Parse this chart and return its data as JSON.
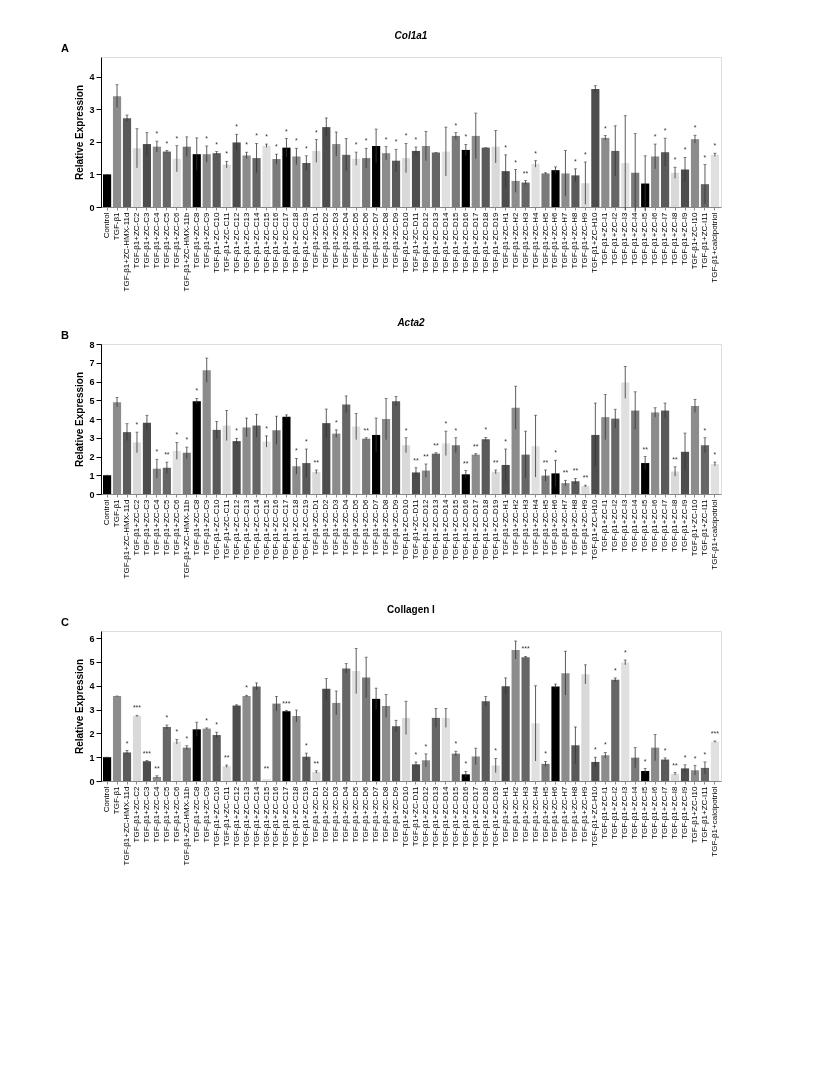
{
  "chart_data": [
    {
      "type": "bar",
      "title": "Col1a1",
      "ylabel": "Relative Expression",
      "ylim": [
        0,
        4.6
      ],
      "yticks": [
        0,
        1,
        2,
        3,
        4
      ],
      "grid": false,
      "categories": [
        "Control",
        "TGF-β1",
        "TGF-β1+ZC-HMX-11d",
        "TGF-β1+ZC-C2",
        "TGF-β1+ZC-C3",
        "TGF-β1+ZC-C4",
        "TGF-β1+ZC-C5",
        "TGF-β1+ZC-C6",
        "TGF-β1+ZC-HMX-11b",
        "TGF-β1+ZC-C8",
        "TGF-β1+ZC-C9",
        "TGF-β1+ZC-C10",
        "TGF-β1+ZC-C11",
        "TGF-β1+ZC-C12",
        "TGF-β1+ZC-C13",
        "TGF-β1+ZC-C14",
        "TGF-β1+ZC-C15",
        "TGF-β1+ZC-C16",
        "TGF-β1+ZC-C17",
        "TGF-β1+ZC-C18",
        "TGF-β1+ZC-C19",
        "TGF-β1+ZC-D1",
        "TGF-β1+ZC-D2",
        "TGF-β1+ZC-D3",
        "TGF-β1+ZC-D4",
        "TGF-β1+ZC-D5",
        "TGF-β1+ZC-D6",
        "TGF-β1+ZC-D7",
        "TGF-β1+ZC-D8",
        "TGF-β1+ZC-D9",
        "TGF-β1+ZC-D10",
        "TGF-β1+ZC-D11",
        "TGF-β1+ZC-D12",
        "TGF-β1+ZC-D13",
        "TGF-β1+ZC-D14",
        "TGF-β1+ZC-D15",
        "TGF-β1+ZC-D16",
        "TGF-β1+ZC-D17",
        "TGF-β1+ZC-D18",
        "TGF-β1+ZC-D19",
        "TGF-β1+ZC-H1",
        "TGF-β1+ZC-H2",
        "TGF-β1+ZC-H3",
        "TGF-β1+ZC-H4",
        "TGF-β1+ZC-H5",
        "TGF-β1+ZC-H6",
        "TGF-β1+ZC-H7",
        "TGF-β1+ZC-H8",
        "TGF-β1+ZC-H9",
        "TGF-β1+ZC-H10",
        "TGF-β1+ZC-I1",
        "TGF-β1+ZC-I2",
        "TGF-β1+ZC-I3",
        "TGF-β1+ZC-I4",
        "TGF-β1+ZC-I5",
        "TGF-β1+ZC-I6",
        "TGF-β1+ZC-I7",
        "TGF-β1+ZC-I8",
        "TGF-β1+ZC-I9",
        "TGF-β1+ZC-I10",
        "TGF-β1+ZC-I11",
        "TGF-β1+calcipotriol"
      ],
      "values": [
        1.0,
        3.4,
        2.72,
        1.8,
        1.93,
        1.85,
        1.7,
        1.48,
        1.85,
        1.62,
        1.62,
        1.65,
        1.3,
        1.98,
        1.58,
        1.5,
        1.88,
        1.47,
        1.82,
        1.55,
        1.35,
        1.72,
        2.45,
        1.93,
        1.6,
        1.48,
        1.5,
        1.87,
        1.65,
        1.42,
        1.5,
        1.72,
        1.87,
        1.67,
        1.7,
        2.18,
        1.75,
        2.18,
        1.82,
        1.85,
        1.1,
        0.8,
        0.75,
        1.32,
        1.03,
        1.13,
        1.03,
        0.97,
        0.73,
        3.62,
        2.12,
        1.72,
        1.35,
        1.05,
        0.72,
        1.55,
        1.68,
        1.05,
        1.15,
        2.08,
        0.7,
        1.6
      ],
      "errors": [
        0,
        0.35,
        0.1,
        0.6,
        0.35,
        0.17,
        0.03,
        0.4,
        0.3,
        0.5,
        0.25,
        0.05,
        0.1,
        0.25,
        0.1,
        0.45,
        0.05,
        0.15,
        0.28,
        0.25,
        0.22,
        0.35,
        0.28,
        0.37,
        0.5,
        0.2,
        0.3,
        0.52,
        0.2,
        0.35,
        0.45,
        0.12,
        0.45,
        0,
        0.75,
        0.1,
        0.17,
        0.7,
        0,
        0.5,
        0.5,
        0.35,
        0.06,
        0.1,
        0.02,
        0.1,
        0.7,
        0.2,
        0.65,
        0.1,
        0.07,
        0.77,
        1.45,
        1.2,
        0.85,
        0.38,
        0.43,
        0.17,
        0.37,
        0.12,
        0.6,
        0.05
      ],
      "colors": [
        "#000000",
        "#8c8c8c",
        "#5a5a5a",
        "#d9d9d9",
        "#4d4d4d",
        "#8c8c8c",
        "#666666",
        "#e0e0e0",
        "#7a7a7a",
        "#000000",
        "#8c8c8c",
        "#5a5a5a",
        "#d9d9d9",
        "#4d4d4d",
        "#8c8c8c",
        "#666666",
        "#e0e0e0",
        "#7a7a7a",
        "#000000",
        "#8c8c8c",
        "#5a5a5a",
        "#d9d9d9",
        "#4d4d4d",
        "#8c8c8c",
        "#666666",
        "#e0e0e0",
        "#7a7a7a",
        "#000000",
        "#8c8c8c",
        "#5a5a5a",
        "#d9d9d9",
        "#4d4d4d",
        "#8c8c8c",
        "#666666",
        "#e0e0e0",
        "#7a7a7a",
        "#000000",
        "#8c8c8c",
        "#5a5a5a",
        "#d9d9d9",
        "#4d4d4d",
        "#8c8c8c",
        "#666666",
        "#e0e0e0",
        "#7a7a7a",
        "#000000",
        "#8c8c8c",
        "#5a5a5a",
        "#d9d9d9",
        "#4d4d4d",
        "#8c8c8c",
        "#666666",
        "#e0e0e0",
        "#7a7a7a",
        "#000000",
        "#8c8c8c",
        "#5a5a5a",
        "#d9d9d9",
        "#4d4d4d",
        "#8c8c8c",
        "#666666",
        "#e0e0e0"
      ],
      "annotations": [
        "A",
        {
          "text": "*",
          "x": "TGF-β1+ZC-C4",
          "y": 2.02
        },
        {
          "text": "*",
          "x": "TGF-β1+ZC-C5",
          "y": 1.73
        },
        {
          "text": "*",
          "x": "TGF-β1+ZC-C6",
          "y": 1.88
        },
        {
          "text": "*",
          "x": "TGF-β1+ZC-C9",
          "y": 1.87
        },
        {
          "text": "*",
          "x": "TGF-β1+ZC-C10",
          "y": 1.7
        },
        {
          "text": "*",
          "x": "TGF-β1+ZC-C11",
          "y": 1.4
        },
        {
          "text": "*",
          "x": "TGF-β1+ZC-C12",
          "y": 2.23
        },
        {
          "text": "*",
          "x": "TGF-β1+ZC-C13",
          "y": 1.68
        },
        {
          "text": "*",
          "x": "TGF-β1+ZC-C14",
          "y": 1.95
        },
        {
          "text": "*",
          "x": "TGF-β1+ZC-C15",
          "y": 1.93
        },
        {
          "text": "*",
          "x": "TGF-β1+ZC-C16",
          "y": 1.62
        },
        {
          "text": "*",
          "x": "TGF-β1+ZC-C17",
          "y": 2.1
        },
        {
          "text": "*",
          "x": "TGF-β1+ZC-C18",
          "y": 1.8
        },
        {
          "text": "*",
          "x": "TGF-β1+ZC-C19",
          "y": 1.57
        },
        {
          "text": "*",
          "x": "TGF-β1+ZC-D1",
          "y": 2.07
        },
        {
          "text": "*",
          "x": "TGF-β1+ZC-D5",
          "y": 1.68
        },
        {
          "text": "*",
          "x": "TGF-β1+ZC-D6",
          "y": 1.8
        },
        {
          "text": "*",
          "x": "TGF-β1+ZC-D8",
          "y": 1.85
        },
        {
          "text": "*",
          "x": "TGF-β1+ZC-D9",
          "y": 1.77
        },
        {
          "text": "*",
          "x": "TGF-β1+ZC-D10",
          "y": 1.95
        },
        {
          "text": "*",
          "x": "TGF-β1+ZC-D11",
          "y": 1.84
        },
        {
          "text": "*",
          "x": "TGF-β1+ZC-D15",
          "y": 2.28
        },
        {
          "text": "*",
          "x": "TGF-β1+ZC-D16",
          "y": 1.92
        },
        {
          "text": "*",
          "x": "TGF-β1+ZC-H1",
          "y": 1.6
        },
        {
          "text": "*",
          "x": "TGF-β1+ZC-H2",
          "y": 1.15
        },
        {
          "text": "**",
          "x": "TGF-β1+ZC-H3",
          "y": 0.81
        },
        {
          "text": "*",
          "x": "TGF-β1+ZC-H4",
          "y": 1.42
        },
        {
          "text": "*",
          "x": "TGF-β1+ZC-H8",
          "y": 1.17
        },
        {
          "text": "*",
          "x": "TGF-β1+ZC-H9",
          "y": 1.38
        },
        {
          "text": "*",
          "x": "TGF-β1+ZC-I1",
          "y": 2.19
        },
        {
          "text": "*",
          "x": "TGF-β1+ZC-I6",
          "y": 1.93
        },
        {
          "text": "*",
          "x": "TGF-β1+ZC-I7",
          "y": 2.11
        },
        {
          "text": "*",
          "x": "TGF-β1+ZC-I8",
          "y": 1.22
        },
        {
          "text": "*",
          "x": "TGF-β1+ZC-I9",
          "y": 1.52
        },
        {
          "text": "*",
          "x": "TGF-β1+ZC-I10",
          "y": 2.2
        },
        {
          "text": "*",
          "x": "TGF-β1+ZC-I11",
          "y": 1.3
        },
        {
          "text": "*",
          "x": "TGF-β1+calcipotriol",
          "y": 1.65
        }
      ]
    },
    {
      "type": "bar",
      "title": "Acta2",
      "ylabel": "Relative Expression",
      "ylim": [
        0,
        8
      ],
      "yticks": [
        0,
        1,
        2,
        3,
        4,
        5,
        6,
        7,
        8
      ],
      "grid": false,
      "categories": [
        "Control",
        "TGF-β1",
        "TGF-β1+ZC-HMX-11d",
        "TGF-β1+ZC-C2",
        "TGF-β1+ZC-C3",
        "TGF-β1+ZC-C4",
        "TGF-β1+ZC-C5",
        "TGF-β1+ZC-C6",
        "TGF-β1+ZC-HMX-11b",
        "TGF-β1+ZC-C8",
        "TGF-β1+ZC-C9",
        "TGF-β1+ZC-C10",
        "TGF-β1+ZC-C11",
        "TGF-β1+ZC-C12",
        "TGF-β1+ZC-C13",
        "TGF-β1+ZC-C14",
        "TGF-β1+ZC-C15",
        "TGF-β1+ZC-C16",
        "TGF-β1+ZC-C17",
        "TGF-β1+ZC-C18",
        "TGF-β1+ZC-C19",
        "TGF-β1+ZC-D1",
        "TGF-β1+ZC-D2",
        "TGF-β1+ZC-D3",
        "TGF-β1+ZC-D4",
        "TGF-β1+ZC-D5",
        "TGF-β1+ZC-D6",
        "TGF-β1+ZC-D7",
        "TGF-β1+ZC-D8",
        "TGF-β1+ZC-D9",
        "TGF-β1+ZC-D10",
        "TGF-β1+ZC-D11",
        "TGF-β1+ZC-D12",
        "TGF-β1+ZC-D13",
        "TGF-β1+ZC-D14",
        "TGF-β1+ZC-D15",
        "TGF-β1+ZC-D16",
        "TGF-β1+ZC-D17",
        "TGF-β1+ZC-D18",
        "TGF-β1+ZC-D19",
        "TGF-β1+ZC-H1",
        "TGF-β1+ZC-H2",
        "TGF-β1+ZC-H3",
        "TGF-β1+ZC-H4",
        "TGF-β1+ZC-H5",
        "TGF-β1+ZC-H6",
        "TGF-β1+ZC-H7",
        "TGF-β1+ZC-H8",
        "TGF-β1+ZC-H9",
        "TGF-β1+ZC-H10",
        "TGF-β1+ZC-I1",
        "TGF-β1+ZC-I2",
        "TGF-β1+ZC-I3",
        "TGF-β1+ZC-I4",
        "TGF-β1+ZC-I5",
        "TGF-β1+ZC-I6",
        "TGF-β1+ZC-I7",
        "TGF-β1+ZC-I8",
        "TGF-β1+ZC-I9",
        "TGF-β1+ZC-I10",
        "TGF-β1+ZC-I11",
        "TGF-β1+calcipotriol"
      ],
      "values": [
        1.0,
        4.9,
        3.3,
        2.75,
        3.8,
        1.35,
        1.4,
        2.3,
        2.2,
        4.95,
        6.6,
        3.42,
        3.65,
        2.82,
        3.55,
        3.65,
        2.8,
        3.4,
        4.12,
        1.48,
        1.65,
        1.18,
        3.78,
        3.22,
        4.78,
        3.6,
        2.95,
        3.15,
        4.0,
        4.95,
        2.6,
        1.15,
        1.25,
        2.15,
        2.7,
        2.6,
        1.05,
        2.1,
        2.92,
        1.18,
        1.55,
        4.6,
        2.1,
        2.55,
        0.98,
        1.1,
        0.58,
        0.68,
        0.42,
        3.15,
        4.1,
        4.02,
        5.95,
        4.45,
        1.65,
        4.35,
        4.45,
        1.2,
        2.25,
        4.7,
        2.6,
        1.6
      ],
      "errors": [
        0,
        0.25,
        0.45,
        0.55,
        0.4,
        0.5,
        0.3,
        0.45,
        0.3,
        0.15,
        0.65,
        0.45,
        0.8,
        0.15,
        0.5,
        0.6,
        0.3,
        0.75,
        0.1,
        0.42,
        0.75,
        0.1,
        0.75,
        0.2,
        0.45,
        0.7,
        0.05,
        0.9,
        1.1,
        0.25,
        0.4,
        0.25,
        0.35,
        0.05,
        0.65,
        0.4,
        0.2,
        0.05,
        0.1,
        0.1,
        0.85,
        1.15,
        1.25,
        1.65,
        0.3,
        0.7,
        0.15,
        0.15,
        0.05,
        1.7,
        1.2,
        0.5,
        0.85,
        1.0,
        0.35,
        0.25,
        0.4,
        0.25,
        1.0,
        0.35,
        0.4,
        0.1
      ],
      "colors": [
        "#000000",
        "#8c8c8c",
        "#5a5a5a",
        "#d9d9d9",
        "#4d4d4d",
        "#8c8c8c",
        "#666666",
        "#e0e0e0",
        "#7a7a7a",
        "#000000",
        "#8c8c8c",
        "#5a5a5a",
        "#d9d9d9",
        "#4d4d4d",
        "#8c8c8c",
        "#666666",
        "#e0e0e0",
        "#7a7a7a",
        "#000000",
        "#8c8c8c",
        "#5a5a5a",
        "#d9d9d9",
        "#4d4d4d",
        "#8c8c8c",
        "#666666",
        "#e0e0e0",
        "#7a7a7a",
        "#000000",
        "#8c8c8c",
        "#5a5a5a",
        "#d9d9d9",
        "#4d4d4d",
        "#8c8c8c",
        "#666666",
        "#e0e0e0",
        "#7a7a7a",
        "#000000",
        "#8c8c8c",
        "#5a5a5a",
        "#d9d9d9",
        "#4d4d4d",
        "#8c8c8c",
        "#666666",
        "#e0e0e0",
        "#7a7a7a",
        "#000000",
        "#8c8c8c",
        "#5a5a5a",
        "#d9d9d9",
        "#4d4d4d",
        "#8c8c8c",
        "#666666",
        "#e0e0e0",
        "#7a7a7a",
        "#000000",
        "#8c8c8c",
        "#5a5a5a",
        "#d9d9d9",
        "#4d4d4d",
        "#8c8c8c",
        "#666666",
        "#e0e0e0"
      ],
      "annotations": [
        "B",
        {
          "text": "*",
          "x": "TGF-β1+ZC-C2",
          "y": 3.3
        },
        {
          "text": "*",
          "x": "TGF-β1+ZC-C4",
          "y": 1.85
        },
        {
          "text": "**",
          "x": "TGF-β1+ZC-C5",
          "y": 1.7
        },
        {
          "text": "*",
          "x": "TGF-β1+ZC-C6",
          "y": 2.75
        },
        {
          "text": "*",
          "x": "TGF-β1+ZC-HMX-11b",
          "y": 2.5
        },
        {
          "text": "*",
          "x": "TGF-β1+ZC-C8",
          "y": 5.1
        },
        {
          "text": "*",
          "x": "TGF-β1+ZC-C12",
          "y": 2.97
        },
        {
          "text": "*",
          "x": "TGF-β1+ZC-C15",
          "y": 3.1
        },
        {
          "text": "*",
          "x": "TGF-β1+ZC-C18",
          "y": 1.9
        },
        {
          "text": "*",
          "x": "TGF-β1+ZC-C19",
          "y": 2.4
        },
        {
          "text": "**",
          "x": "TGF-β1+ZC-D1",
          "y": 1.28
        },
        {
          "text": "*",
          "x": "TGF-β1+ZC-D3",
          "y": 3.42
        },
        {
          "text": "**",
          "x": "TGF-β1+ZC-D6",
          "y": 3.0
        },
        {
          "text": "*",
          "x": "TGF-β1+ZC-D10",
          "y": 3.0
        },
        {
          "text": "**",
          "x": "TGF-β1+ZC-D11",
          "y": 1.4
        },
        {
          "text": "**",
          "x": "TGF-β1+ZC-D12",
          "y": 1.6
        },
        {
          "text": "**",
          "x": "TGF-β1+ZC-D13",
          "y": 2.2
        },
        {
          "text": "*",
          "x": "TGF-β1+ZC-D14",
          "y": 3.35
        },
        {
          "text": "*",
          "x": "TGF-β1+ZC-D15",
          "y": 3.0
        },
        {
          "text": "**",
          "x": "TGF-β1+ZC-D16",
          "y": 1.25
        },
        {
          "text": "**",
          "x": "TGF-β1+ZC-D17",
          "y": 2.15
        },
        {
          "text": "*",
          "x": "TGF-β1+ZC-D18",
          "y": 3.02
        },
        {
          "text": "**",
          "x": "TGF-β1+ZC-D19",
          "y": 1.28
        },
        {
          "text": "*",
          "x": "TGF-β1+ZC-H1",
          "y": 2.4
        },
        {
          "text": "**",
          "x": "TGF-β1+ZC-H5",
          "y": 1.28
        },
        {
          "text": "*",
          "x": "TGF-β1+ZC-H6",
          "y": 1.8
        },
        {
          "text": "**",
          "x": "TGF-β1+ZC-H7",
          "y": 0.73
        },
        {
          "text": "**",
          "x": "TGF-β1+ZC-H8",
          "y": 0.83
        },
        {
          "text": "**",
          "x": "TGF-β1+ZC-H9",
          "y": 0.47
        },
        {
          "text": "**",
          "x": "TGF-β1+ZC-I5",
          "y": 2.0
        },
        {
          "text": "**",
          "x": "TGF-β1+ZC-I8",
          "y": 1.45
        },
        {
          "text": "*",
          "x": "TGF-β1+ZC-I11",
          "y": 3.0
        },
        {
          "text": "*",
          "x": "TGF-β1+calcipotriol",
          "y": 1.7
        }
      ]
    },
    {
      "type": "bar",
      "title": "Collagen I",
      "ylabel": "Relative Expression",
      "ylim": [
        0,
        6.3
      ],
      "yticks": [
        0,
        1,
        2,
        3,
        4,
        5,
        6
      ],
      "grid": false,
      "categories": [
        "Control",
        "TGF-β1",
        "TGF-β1+ZC-HMX-11d",
        "TGF-β1+ZC-C2",
        "TGF-β1+ZC-C3",
        "TGF-β1+ZC-C4",
        "TGF-β1+ZC-C5",
        "TGF-β1+ZC-C6",
        "TGF-β1+ZC-HMX-11b",
        "TGF-β1+ZC-C8",
        "TGF-β1+ZC-C9",
        "TGF-β1+ZC-C10",
        "TGF-β1+ZC-C11",
        "TGF-β1+ZC-C12",
        "TGF-β1+ZC-C13",
        "TGF-β1+ZC-C14",
        "TGF-β1+ZC-C15",
        "TGF-β1+ZC-C16",
        "TGF-β1+ZC-C17",
        "TGF-β1+ZC-C18",
        "TGF-β1+ZC-C19",
        "TGF-β1+ZC-D1",
        "TGF-β1+ZC-D2",
        "TGF-β1+ZC-D3",
        "TGF-β1+ZC-D4",
        "TGF-β1+ZC-D5",
        "TGF-β1+ZC-D6",
        "TGF-β1+ZC-D7",
        "TGF-β1+ZC-D8",
        "TGF-β1+ZC-D9",
        "TGF-β1+ZC-D10",
        "TGF-β1+ZC-D11",
        "TGF-β1+ZC-D12",
        "TGF-β1+ZC-D13",
        "TGF-β1+ZC-D14",
        "TGF-β1+ZC-D15",
        "TGF-β1+ZC-D16",
        "TGF-β1+ZC-D17",
        "TGF-β1+ZC-D18",
        "TGF-β1+ZC-D19",
        "TGF-β1+ZC-H1",
        "TGF-β1+ZC-H2",
        "TGF-β1+ZC-H3",
        "TGF-β1+ZC-H4",
        "TGF-β1+ZC-H5",
        "TGF-β1+ZC-H6",
        "TGF-β1+ZC-H7",
        "TGF-β1+ZC-H8",
        "TGF-β1+ZC-H9",
        "TGF-β1+ZC-H10",
        "TGF-β1+ZC-I1",
        "TGF-β1+ZC-I2",
        "TGF-β1+ZC-I3",
        "TGF-β1+ZC-I4",
        "TGF-β1+ZC-I5",
        "TGF-β1+ZC-I6",
        "TGF-β1+ZC-I7",
        "TGF-β1+ZC-I8",
        "TGF-β1+ZC-I9",
        "TGF-β1+ZC-I10",
        "TGF-β1+ZC-I11",
        "TGF-β1+calcipotriol"
      ],
      "values": [
        1.0,
        3.57,
        1.2,
        2.73,
        0.83,
        0.17,
        2.27,
        1.65,
        1.4,
        2.17,
        2.2,
        1.93,
        0.62,
        3.17,
        3.57,
        3.97,
        0.08,
        3.25,
        2.93,
        2.73,
        1.02,
        0.38,
        3.87,
        3.28,
        4.73,
        4.62,
        4.35,
        3.45,
        3.15,
        2.3,
        2.65,
        0.7,
        0.87,
        2.65,
        2.65,
        1.15,
        0.28,
        1.03,
        3.35,
        0.65,
        3.98,
        5.5,
        5.2,
        2.42,
        0.72,
        3.97,
        4.53,
        1.5,
        4.48,
        0.8,
        1.08,
        4.25,
        4.98,
        0.98,
        0.42,
        1.4,
        0.9,
        0.3,
        0.53,
        0.45,
        0.55,
        1.65
      ],
      "errors": [
        0,
        0,
        0.08,
        0.03,
        0.03,
        0.05,
        0.08,
        0.1,
        0.08,
        0.3,
        0.03,
        0.12,
        0.05,
        0.03,
        0.03,
        0.15,
        null,
        0.3,
        0.03,
        0.25,
        0.15,
        0.05,
        0.43,
        0.5,
        0.2,
        0.95,
        0.85,
        0.45,
        0.48,
        0.25,
        0.7,
        0.1,
        0.27,
        0.4,
        0.4,
        0.1,
        0.12,
        0.35,
        0.2,
        0.3,
        0.35,
        0.38,
        0.03,
        1.58,
        0.1,
        0.1,
        0.92,
        0.77,
        0.4,
        0.2,
        0.12,
        0.08,
        0.1,
        0.42,
        0.1,
        0.55,
        0.07,
        0.05,
        0.15,
        0.2,
        0.25,
        0.03
      ],
      "colors": [
        "#000000",
        "#8c8c8c",
        "#5a5a5a",
        "#d9d9d9",
        "#4d4d4d",
        "#8c8c8c",
        "#666666",
        "#e0e0e0",
        "#7a7a7a",
        "#000000",
        "#8c8c8c",
        "#5a5a5a",
        "#d9d9d9",
        "#4d4d4d",
        "#8c8c8c",
        "#666666",
        "#e0e0e0",
        "#7a7a7a",
        "#000000",
        "#8c8c8c",
        "#5a5a5a",
        "#d9d9d9",
        "#4d4d4d",
        "#8c8c8c",
        "#666666",
        "#e0e0e0",
        "#7a7a7a",
        "#000000",
        "#8c8c8c",
        "#5a5a5a",
        "#d9d9d9",
        "#4d4d4d",
        "#8c8c8c",
        "#666666",
        "#e0e0e0",
        "#7a7a7a",
        "#000000",
        "#8c8c8c",
        "#5a5a5a",
        "#d9d9d9",
        "#4d4d4d",
        "#8c8c8c",
        "#666666",
        "#e0e0e0",
        "#7a7a7a",
        "#000000",
        "#8c8c8c",
        "#5a5a5a",
        "#d9d9d9",
        "#4d4d4d",
        "#8c8c8c",
        "#666666",
        "#e0e0e0",
        "#7a7a7a",
        "#000000",
        "#8c8c8c",
        "#5a5a5a",
        "#d9d9d9",
        "#4d4d4d",
        "#8c8c8c",
        "#666666",
        "#e0e0e0"
      ],
      "annotations": [
        "C",
        {
          "text": "*",
          "x": "TGF-β1+ZC-HMX-11d",
          "y": 1.28
        },
        {
          "text": "***",
          "x": "TGF-β1+ZC-C2",
          "y": 2.76
        },
        {
          "text": "***",
          "x": "TGF-β1+ZC-C3",
          "y": 0.86
        },
        {
          "text": "**",
          "x": "TGF-β1+ZC-C4",
          "y": 0.22
        },
        {
          "text": "*",
          "x": "TGF-β1+ZC-C5",
          "y": 2.35
        },
        {
          "text": "*",
          "x": "TGF-β1+ZC-C6",
          "y": 1.75
        },
        {
          "text": "*",
          "x": "TGF-β1+ZC-HMX-11b",
          "y": 1.48
        },
        {
          "text": "*",
          "x": "TGF-β1+ZC-C9",
          "y": 2.23
        },
        {
          "text": "*",
          "x": "TGF-β1+ZC-C10",
          "y": 2.05
        },
        {
          "text": "**",
          "x": "TGF-β1+ZC-C11",
          "y": 0.67
        },
        {
          "text": "*",
          "x": "TGF-β1+ZC-C13",
          "y": 3.6
        },
        {
          "text": "**",
          "x": "TGF-β1+ZC-C15",
          "y": 0.2
        },
        {
          "text": "***",
          "x": "TGF-β1+ZC-C17",
          "y": 2.96
        },
        {
          "text": "*",
          "x": "TGF-β1+ZC-C19",
          "y": 1.17
        },
        {
          "text": "**",
          "x": "TGF-β1+ZC-D1",
          "y": 0.43
        },
        {
          "text": "*",
          "x": "TGF-β1+ZC-D11",
          "y": 0.8
        },
        {
          "text": "*",
          "x": "TGF-β1+ZC-D12",
          "y": 1.14
        },
        {
          "text": "*",
          "x": "TGF-β1+ZC-D15",
          "y": 1.25
        },
        {
          "text": "*",
          "x": "TGF-β1+ZC-D16",
          "y": 0.4
        },
        {
          "text": "*",
          "x": "TGF-β1+ZC-D19",
          "y": 0.95
        },
        {
          "text": "***",
          "x": "TGF-β1+ZC-H3",
          "y": 5.23
        },
        {
          "text": "*",
          "x": "TGF-β1+ZC-H5",
          "y": 0.82
        },
        {
          "text": "*",
          "x": "TGF-β1+ZC-H10",
          "y": 1.0
        },
        {
          "text": "*",
          "x": "TGF-β1+ZC-I1",
          "y": 1.2
        },
        {
          "text": "*",
          "x": "TGF-β1+ZC-I2",
          "y": 4.33
        },
        {
          "text": "*",
          "x": "TGF-β1+ZC-I3",
          "y": 5.08
        },
        {
          "text": "*",
          "x": "TGF-β1+ZC-I5",
          "y": 0.52
        },
        {
          "text": "*",
          "x": "TGF-β1+ZC-I7",
          "y": 0.97
        },
        {
          "text": "**",
          "x": "TGF-β1+ZC-I8",
          "y": 0.35
        },
        {
          "text": "*",
          "x": "TGF-β1+ZC-I9",
          "y": 0.68
        },
        {
          "text": "*",
          "x": "TGF-β1+ZC-I10",
          "y": 0.65
        },
        {
          "text": "*",
          "x": "TGF-β1+ZC-I11",
          "y": 0.8
        },
        {
          "text": "***",
          "x": "TGF-β1+calcipotriol",
          "y": 1.68
        }
      ]
    }
  ]
}
